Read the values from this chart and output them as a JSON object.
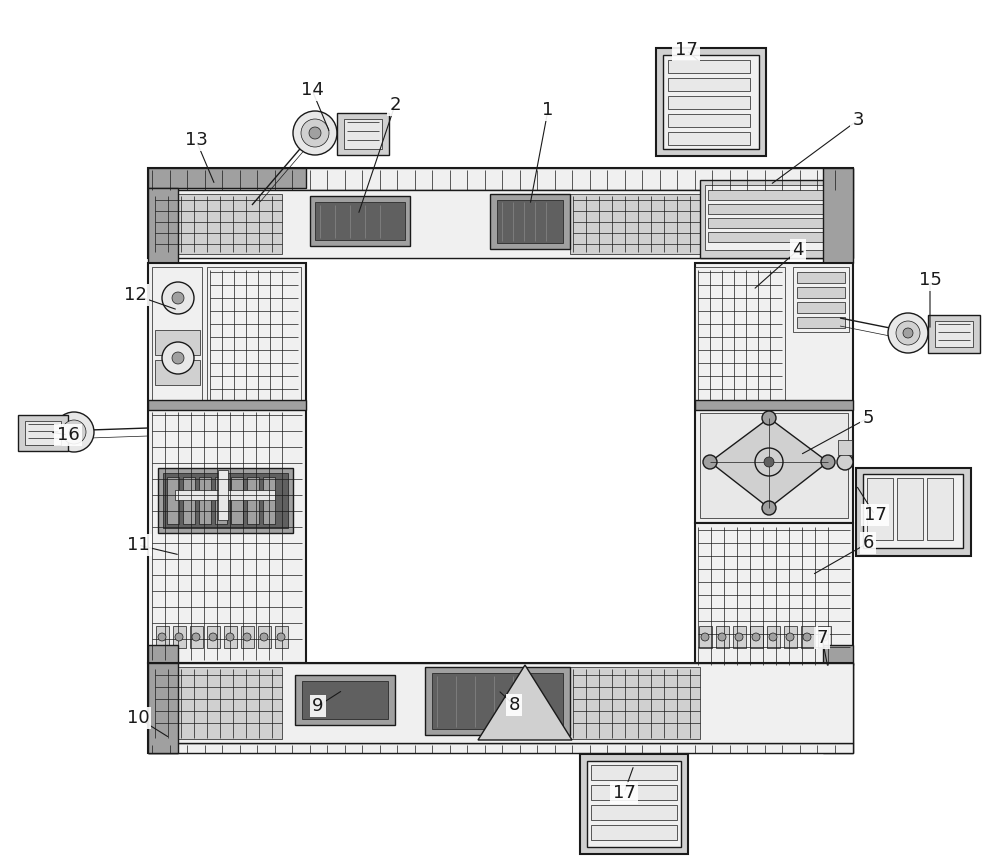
{
  "bg": "#ffffff",
  "lc": "#1a1a1a",
  "fc_main": "#e8e8e8",
  "fc_light": "#f0f0f0",
  "fc_mid": "#d0d0d0",
  "fc_dark": "#a0a0a0",
  "fc_vdark": "#606060",
  "fc_stripe": "#c8c8c8",
  "figw": 10.0,
  "figh": 8.59
}
